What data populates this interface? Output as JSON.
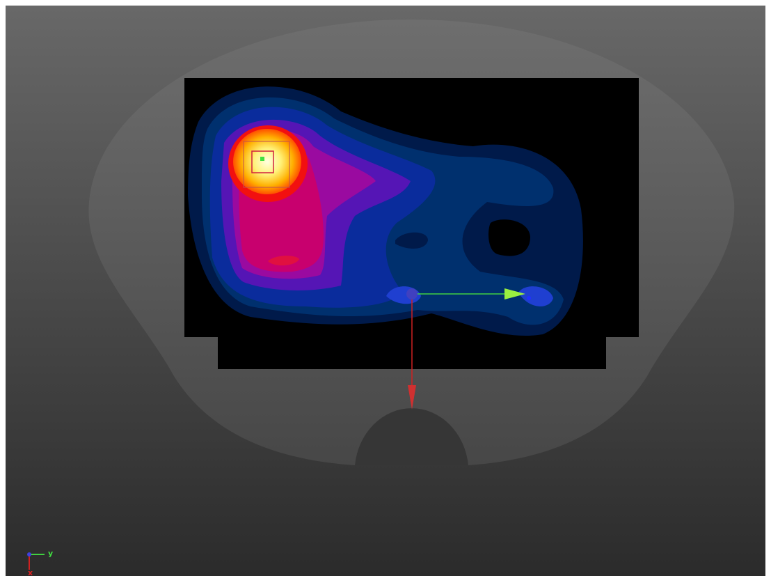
{
  "viewport": {
    "axes": {
      "x_label": "x",
      "y_label": "y"
    }
  }
}
